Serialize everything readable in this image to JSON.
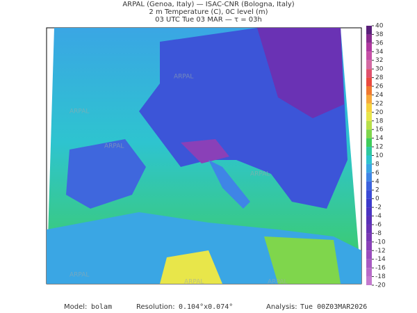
{
  "header": {
    "line1": "ARPAL (Genoa, Italy)  —  ISAC-CNR (Bologna, Italy)",
    "line2": "2 m Temperature (C), 0C level (m)",
    "line3": "03 UTC Tue 03 MAR  —  τ = 03h"
  },
  "watermark": "ARPAL",
  "colorbar": {
    "ticks": [
      40,
      38,
      36,
      34,
      32,
      30,
      28,
      26,
      24,
      22,
      20,
      18,
      16,
      14,
      12,
      10,
      8,
      6,
      4,
      2,
      0,
      -2,
      -4,
      -6,
      -8,
      -10,
      -12,
      -14,
      -16,
      -18,
      -20
    ],
    "colors": [
      "#5a1f7a",
      "#8a2a8f",
      "#b0389f",
      "#c64fa6",
      "#d46aa3",
      "#e0516d",
      "#ea4a3f",
      "#f0782f",
      "#f7a93a",
      "#f6d23e",
      "#e8e64a",
      "#b8e04a",
      "#7fd64c",
      "#3fcd5b",
      "#2ec9a0",
      "#2ec4cf",
      "#3aa6e4",
      "#3f85e6",
      "#3c63df",
      "#3a49d6",
      "#3d3acc",
      "#4b33c2",
      "#5a30b8",
      "#6a32b4",
      "#7a38b4",
      "#8a40b8",
      "#9a4cbd",
      "#a95ac2",
      "#b86ac8",
      "#c47ace"
    ]
  },
  "footer": {
    "model_label": "Model:",
    "model": "bolam",
    "resolution_label": "Resolution:",
    "resolution": "0.104°x0.074°",
    "analysis_label": "Analysis:",
    "analysis": "Tue 00Z03MAR2026"
  }
}
